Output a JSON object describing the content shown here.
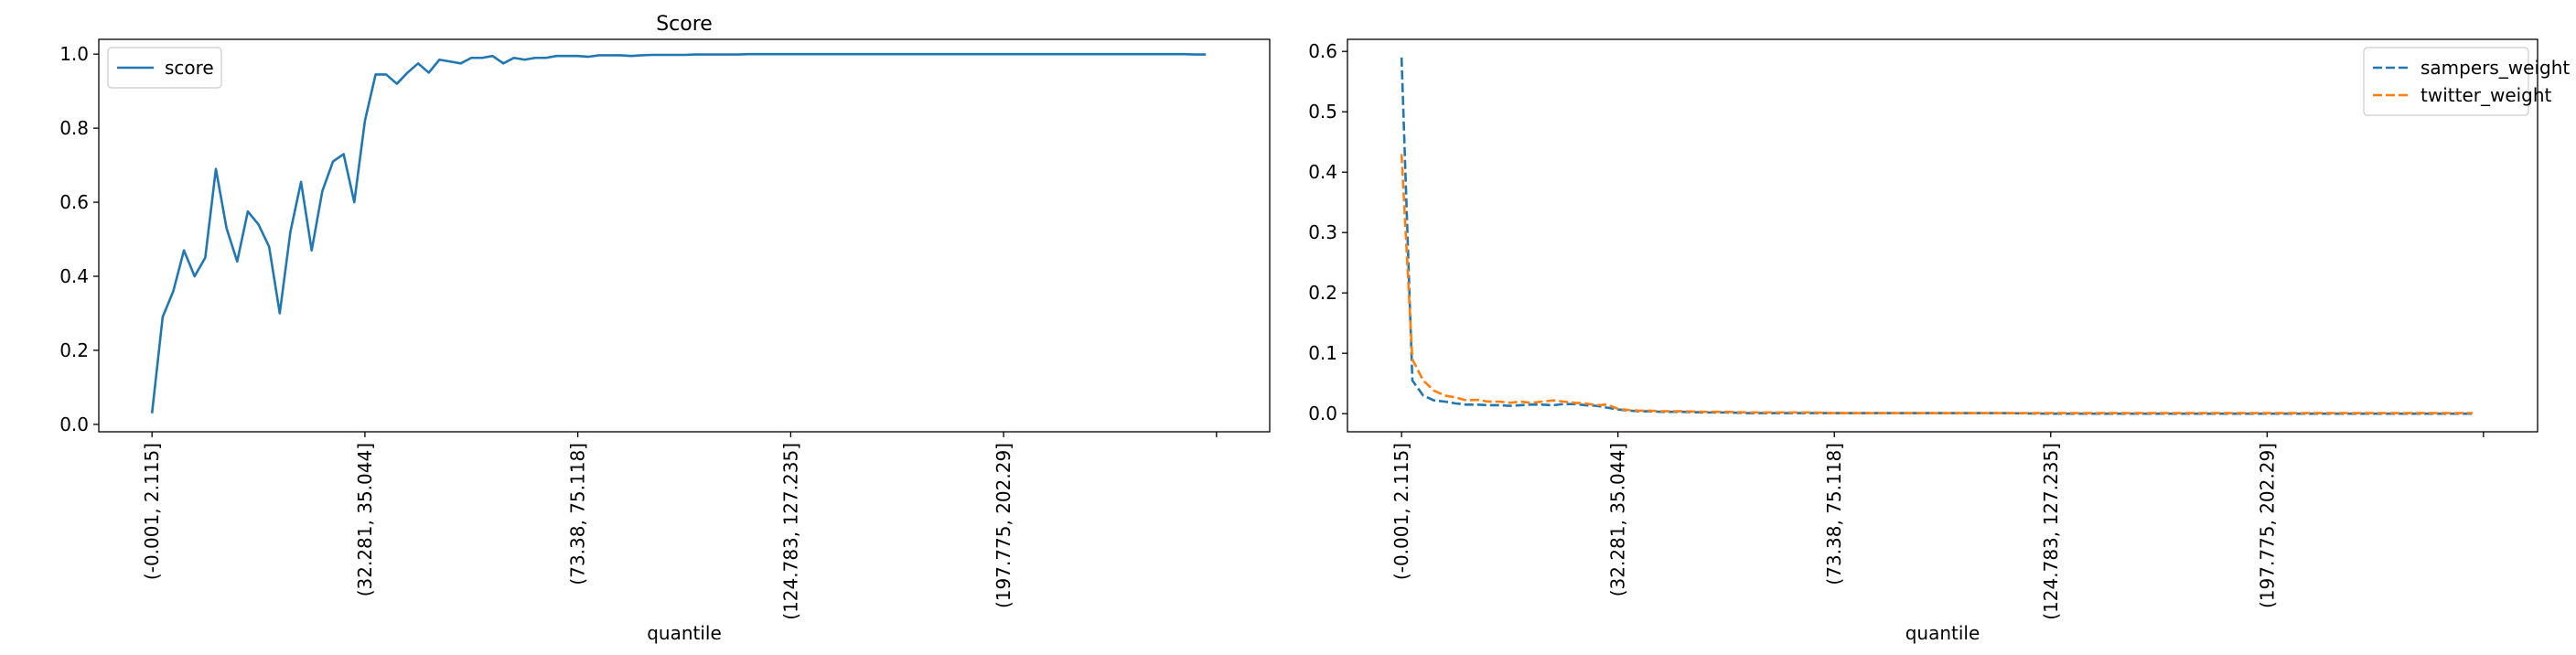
{
  "chart_data": [
    {
      "type": "line",
      "title": "Score",
      "xlabel": "quantile",
      "ylabel": "",
      "x_tick_labels": [
        "(-0.001, 2.115]",
        "(32.281, 35.044]",
        "(73.38, 75.118]",
        "(124.783, 127.235]",
        "(197.775, 202.29]",
        ""
      ],
      "x_tick_positions": [
        0,
        20,
        40,
        60,
        80,
        100
      ],
      "xlim": [
        -5,
        105
      ],
      "ylim": [
        -0.02,
        1.04
      ],
      "y_ticks": [
        "0.0",
        "0.2",
        "0.4",
        "0.6",
        "0.8",
        "1.0"
      ],
      "legend": "upper-left",
      "grid": false,
      "series": [
        {
          "name": "score",
          "color": "#1f77b4",
          "dash": "solid",
          "x": [
            0,
            1,
            2,
            3,
            4,
            5,
            6,
            7,
            8,
            9,
            10,
            11,
            12,
            13,
            14,
            15,
            16,
            17,
            18,
            19,
            20,
            21,
            22,
            23,
            24,
            25,
            26,
            27,
            28,
            29,
            30,
            31,
            32,
            33,
            34,
            35,
            36,
            37,
            38,
            39,
            40,
            41,
            42,
            43,
            44,
            45,
            46,
            47,
            48,
            49,
            50,
            51,
            52,
            53,
            54,
            55,
            56,
            57,
            58,
            59,
            60,
            61,
            62,
            63,
            64,
            65,
            66,
            67,
            68,
            69,
            70,
            71,
            72,
            73,
            74,
            75,
            76,
            77,
            78,
            79,
            80,
            81,
            82,
            83,
            84,
            85,
            86,
            87,
            88,
            89,
            90,
            91,
            92,
            93,
            94,
            95,
            96,
            97,
            98,
            99
          ],
          "values": [
            0.03,
            0.29,
            0.36,
            0.47,
            0.4,
            0.45,
            0.69,
            0.53,
            0.44,
            0.575,
            0.54,
            0.48,
            0.3,
            0.52,
            0.655,
            0.47,
            0.63,
            0.71,
            0.73,
            0.6,
            0.82,
            0.945,
            0.945,
            0.92,
            0.95,
            0.975,
            0.95,
            0.985,
            0.98,
            0.975,
            0.99,
            0.99,
            0.995,
            0.975,
            0.99,
            0.985,
            0.99,
            0.99,
            0.995,
            0.995,
            0.995,
            0.993,
            0.997,
            0.997,
            0.997,
            0.995,
            0.997,
            0.998,
            0.998,
            0.998,
            0.998,
            0.999,
            0.999,
            0.999,
            0.999,
            0.999,
            1.0,
            1.0,
            1.0,
            1.0,
            1.0,
            1.0,
            1.0,
            1.0,
            1.0,
            1.0,
            1.0,
            1.0,
            1.0,
            1.0,
            1.0,
            1.0,
            1.0,
            1.0,
            1.0,
            1.0,
            1.0,
            1.0,
            1.0,
            1.0,
            1.0,
            1.0,
            1.0,
            1.0,
            1.0,
            1.0,
            1.0,
            1.0,
            1.0,
            1.0,
            1.0,
            1.0,
            1.0,
            1.0,
            1.0,
            1.0,
            1.0,
            1.0,
            0.999,
            0.999
          ]
        }
      ]
    },
    {
      "type": "line",
      "title": "",
      "xlabel": "quantile",
      "ylabel": "",
      "x_tick_labels": [
        "(-0.001, 2.115]",
        "(32.281, 35.044]",
        "(73.38, 75.118]",
        "(124.783, 127.235]",
        "(197.775, 202.29]",
        ""
      ],
      "x_tick_positions": [
        0,
        20,
        40,
        60,
        80,
        100
      ],
      "xlim": [
        -5,
        105
      ],
      "ylim": [
        -0.03,
        0.62
      ],
      "y_ticks": [
        "0.0",
        "0.1",
        "0.2",
        "0.3",
        "0.4",
        "0.5",
        "0.6"
      ],
      "legend": "upper-right",
      "grid": false,
      "series": [
        {
          "name": "sampers_weight",
          "color": "#1f77b4",
          "dash": "dashed",
          "x": [
            0,
            1,
            2,
            3,
            4,
            5,
            6,
            7,
            8,
            9,
            10,
            11,
            12,
            13,
            14,
            15,
            16,
            17,
            18,
            19,
            20,
            21,
            22,
            23,
            24,
            25,
            26,
            28,
            30,
            32,
            34,
            36,
            38,
            40,
            45,
            50,
            55,
            60,
            65,
            70,
            75,
            80,
            85,
            90,
            95,
            99
          ],
          "values": [
            0.59,
            0.055,
            0.03,
            0.022,
            0.02,
            0.017,
            0.015,
            0.015,
            0.014,
            0.014,
            0.013,
            0.014,
            0.015,
            0.015,
            0.014,
            0.016,
            0.016,
            0.014,
            0.013,
            0.01,
            0.007,
            0.005,
            0.004,
            0.004,
            0.003,
            0.003,
            0.003,
            0.002,
            0.002,
            0.001,
            0.001,
            0.001,
            0.001,
            0.001,
            0.001,
            0.001,
            0.001,
            0.0,
            0.0,
            0.0,
            0.0,
            0.0,
            0.0,
            0.0,
            0.0,
            0.0
          ]
        },
        {
          "name": "twitter_weight",
          "color": "#ff7f0e",
          "dash": "dashed",
          "x": [
            0,
            1,
            2,
            3,
            4,
            5,
            6,
            7,
            8,
            9,
            10,
            11,
            12,
            13,
            14,
            15,
            16,
            17,
            18,
            19,
            20,
            21,
            22,
            23,
            24,
            25,
            26,
            28,
            30,
            32,
            34,
            36,
            38,
            40,
            45,
            50,
            55,
            60,
            65,
            70,
            75,
            80,
            85,
            90,
            95,
            99
          ],
          "values": [
            0.43,
            0.09,
            0.055,
            0.038,
            0.03,
            0.027,
            0.022,
            0.023,
            0.02,
            0.02,
            0.018,
            0.02,
            0.018,
            0.02,
            0.022,
            0.02,
            0.018,
            0.017,
            0.014,
            0.015,
            0.008,
            0.006,
            0.005,
            0.005,
            0.004,
            0.004,
            0.004,
            0.003,
            0.003,
            0.002,
            0.002,
            0.002,
            0.002,
            0.001,
            0.001,
            0.001,
            0.001,
            0.001,
            0.001,
            0.001,
            0.001,
            0.001,
            0.001,
            0.001,
            0.001,
            0.001
          ]
        }
      ]
    }
  ]
}
